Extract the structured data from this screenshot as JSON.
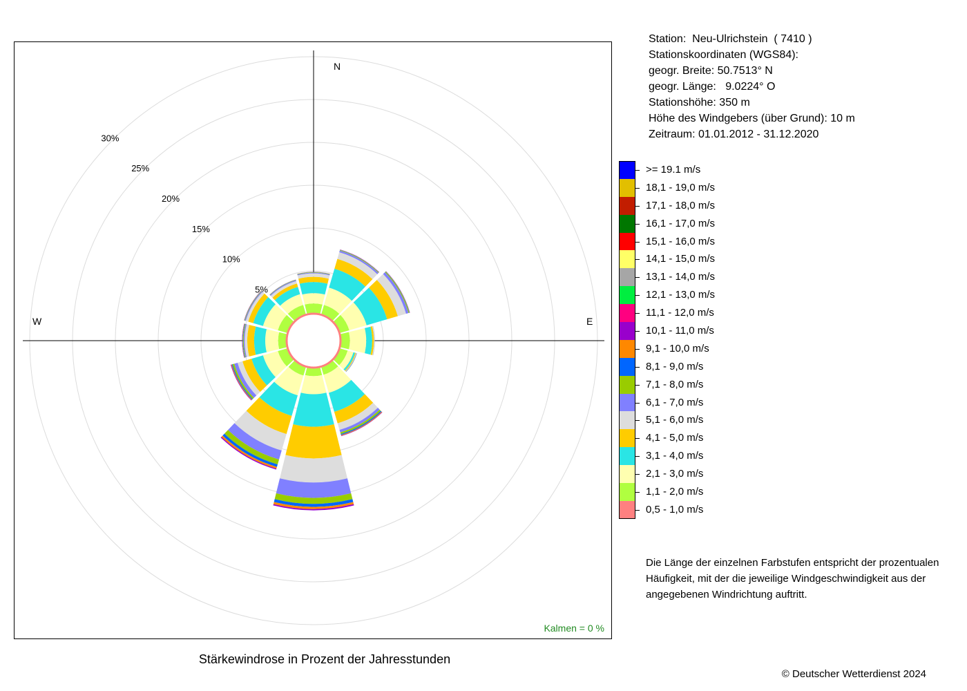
{
  "station": {
    "name_line": "Station:  Neu-Ulrichstein  ( 7410 )",
    "coords_heading": "Stationskoordinaten (WGS84):",
    "lat_line": "geogr. Breite: 50.7513° N",
    "lon_line": "geogr. Länge:   9.0224° O",
    "height_line": "Stationshöhe: 350 m",
    "sensor_line": "Höhe des Windgebers (über Grund): 10 m",
    "period_line": "Zeitraum: 01.01.2012 - 31.12.2020"
  },
  "legend": [
    {
      "label": ">= 19.1 m/s",
      "color": "#0000ff"
    },
    {
      "label": "18,1 - 19,0 m/s",
      "color": "#e2bf00"
    },
    {
      "label": "17,1 - 18,0 m/s",
      "color": "#c21d00"
    },
    {
      "label": "16,1 - 17,0 m/s",
      "color": "#007700"
    },
    {
      "label": "15,1 - 16,0 m/s",
      "color": "#ff0000"
    },
    {
      "label": "14,1 - 15,0 m/s",
      "color": "#ffff66"
    },
    {
      "label": "13,1 - 14,0 m/s",
      "color": "#a6a6a6"
    },
    {
      "label": "12,1 - 13,0 m/s",
      "color": "#00ee40"
    },
    {
      "label": "11,1 - 12,0 m/s",
      "color": "#ff0080"
    },
    {
      "label": "10,1 - 11,0 m/s",
      "color": "#9900cc"
    },
    {
      "label": "9,1 - 10,0 m/s",
      "color": "#ff8800"
    },
    {
      "label": "8,1 - 9,0 m/s",
      "color": "#0066ff"
    },
    {
      "label": "7,1 - 8,0 m/s",
      "color": "#99cc00"
    },
    {
      "label": "6,1 - 7,0 m/s",
      "color": "#8080ff"
    },
    {
      "label": "5,1 - 6,0 m/s",
      "color": "#dddddd"
    },
    {
      "label": "4,1 - 5,0 m/s",
      "color": "#ffcc00"
    },
    {
      "label": "3,1 - 4,0 m/s",
      "color": "#2ae5e5"
    },
    {
      "label": "2,1 - 3,0 m/s",
      "color": "#ffffb0"
    },
    {
      "label": "1,1 - 2,0 m/s",
      "color": "#b0ff40"
    },
    {
      "label": "0,5 - 1,0 m/s",
      "color": "#ff8080"
    }
  ],
  "note": "Die Länge der einzelnen Farbstufen entspricht der prozentualen Häufigkeit, mit der die jeweilige Windgeschwindigkeit aus der angegebenen Windrichtung auftritt.",
  "title": "Stärkewindrose in Prozent der Jahresstunden",
  "copyright": "© Deutscher Wetterdienst  2024",
  "calm_label": "Kalmen  =  0 %",
  "chart_data": {
    "type": "polar-stacked-bar",
    "unit": "%",
    "title": "Stärkewindrose in Prozent der Jahresstunden",
    "radial_ticks": [
      {
        "value": 5,
        "label": "5%"
      },
      {
        "value": 10,
        "label": "10%"
      },
      {
        "value": 15,
        "label": "15%"
      },
      {
        "value": 20,
        "label": "20%"
      },
      {
        "value": 25,
        "label": "25%"
      },
      {
        "value": 30,
        "label": "30%"
      }
    ],
    "direction_labels": {
      "N": "N",
      "E": "E",
      "W": "W"
    },
    "calm": 0,
    "directions": [
      0,
      30,
      60,
      90,
      120,
      150,
      180,
      210,
      240,
      270,
      300,
      330
    ],
    "bin_order_inner_to_outer": [
      "0,5 - 1,0 m/s",
      "1,1 - 2,0 m/s",
      "2,1 - 3,0 m/s",
      "3,1 - 4,0 m/s",
      "4,1 - 5,0 m/s",
      "5,1 - 6,0 m/s",
      "6,1 - 7,0 m/s",
      "7,1 - 8,0 m/s",
      "8,1 - 9,0 m/s",
      "9,1 - 10,0 m/s",
      "10,1 - 11,0 m/s"
    ],
    "sectors": [
      {
        "direction": 0,
        "values": [
          0.1,
          1.1,
          1.2,
          1.3,
          0.6,
          0.4,
          0.1,
          0.05,
          0.02,
          0.01,
          0.01
        ]
      },
      {
        "direction": 30,
        "values": [
          0.1,
          1.1,
          2.1,
          2.3,
          1.2,
          0.8,
          0.2,
          0.07,
          0.03,
          0.02,
          0.02
        ]
      },
      {
        "direction": 60,
        "values": [
          0.1,
          1.1,
          2.1,
          2.5,
          1.3,
          1.0,
          0.3,
          0.1,
          0.04,
          0.02,
          0.02
        ]
      },
      {
        "direction": 90,
        "values": [
          0.1,
          1.0,
          1.9,
          0.7,
          0.2,
          0.08,
          0.02,
          0.01,
          0.0,
          0.0,
          0.0
        ]
      },
      {
        "direction": 120,
        "values": [
          0.1,
          0.9,
          0.7,
          0.2,
          0.1,
          0.05,
          0.05,
          0.02,
          0.01,
          0.0,
          0.0
        ]
      },
      {
        "direction": 150,
        "values": [
          0.1,
          0.9,
          2.2,
          2.3,
          1.4,
          0.8,
          0.3,
          0.2,
          0.12,
          0.08,
          0.05
        ]
      },
      {
        "direction": 180,
        "values": [
          0.1,
          0.9,
          2.1,
          3.8,
          3.7,
          2.8,
          1.8,
          0.7,
          0.35,
          0.25,
          0.15
        ]
      },
      {
        "direction": 210,
        "values": [
          0.1,
          1.0,
          2.4,
          2.5,
          2.2,
          2.0,
          1.1,
          0.6,
          0.3,
          0.2,
          0.12
        ]
      },
      {
        "direction": 240,
        "values": [
          0.1,
          1.1,
          1.8,
          1.4,
          1.1,
          0.6,
          0.4,
          0.2,
          0.1,
          0.08,
          0.06
        ]
      },
      {
        "direction": 270,
        "values": [
          0.1,
          0.9,
          1.5,
          1.3,
          0.8,
          0.3,
          0.12,
          0.08,
          0.05,
          0.03,
          0.03
        ]
      },
      {
        "direction": 300,
        "values": [
          0.1,
          1.1,
          1.8,
          1.2,
          0.6,
          0.3,
          0.1,
          0.05,
          0.03,
          0.02,
          0.02
        ]
      },
      {
        "direction": 330,
        "values": [
          0.1,
          1.1,
          1.3,
          0.9,
          0.4,
          0.3,
          0.1,
          0.05,
          0.02,
          0.01,
          0.01
        ]
      }
    ]
  }
}
